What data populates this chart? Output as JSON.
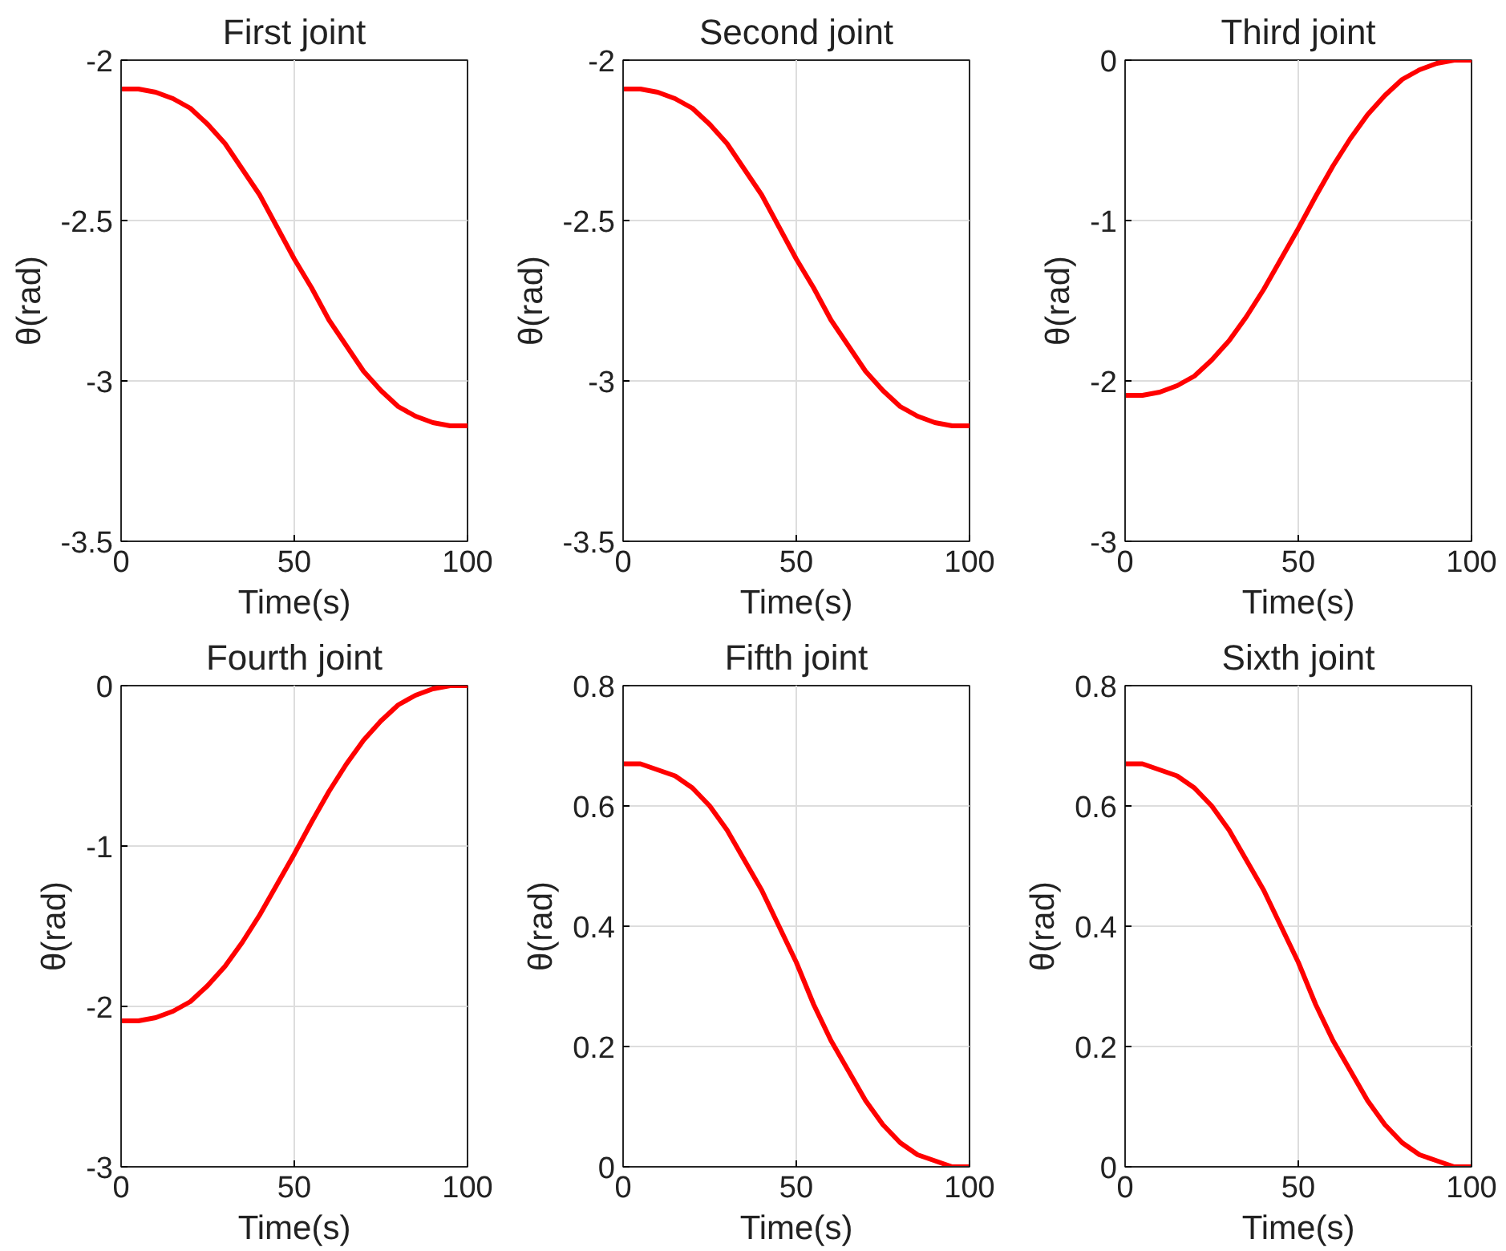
{
  "chart_data": [
    {
      "type": "line",
      "title": "First joint",
      "xlabel": "Time(s)",
      "ylabel": "θ(rad)",
      "x": [
        0,
        5,
        10,
        15,
        20,
        25,
        30,
        35,
        40,
        45,
        50,
        55,
        60,
        65,
        70,
        75,
        80,
        85,
        90,
        95,
        100
      ],
      "xlim": [
        0,
        100
      ],
      "xticks": [
        0,
        50,
        100
      ],
      "ylim": [
        -3.5,
        -2
      ],
      "yticks": [
        -3.5,
        -3,
        -2.5,
        -2
      ],
      "grid": true,
      "line_style": "solid",
      "series": [
        {
          "color": "#ff0000",
          "values": [
            -2.09,
            -2.09,
            -2.1,
            -2.12,
            -2.15,
            -2.2,
            -2.26,
            -2.34,
            -2.42,
            -2.52,
            -2.62,
            -2.71,
            -2.81,
            -2.89,
            -2.97,
            -3.03,
            -3.08,
            -3.11,
            -3.13,
            -3.14,
            -3.14
          ]
        }
      ]
    },
    {
      "type": "line",
      "title": "Second joint",
      "xlabel": "Time(s)",
      "ylabel": "θ(rad)",
      "x": [
        0,
        5,
        10,
        15,
        20,
        25,
        30,
        35,
        40,
        45,
        50,
        55,
        60,
        65,
        70,
        75,
        80,
        85,
        90,
        95,
        100
      ],
      "xlim": [
        0,
        100
      ],
      "xticks": [
        0,
        50,
        100
      ],
      "ylim": [
        -3.5,
        -2
      ],
      "yticks": [
        -3.5,
        -3,
        -2.5,
        -2
      ],
      "grid": true,
      "line_style": "solid",
      "series": [
        {
          "color": "#ff0000",
          "values": [
            -2.09,
            -2.09,
            -2.1,
            -2.12,
            -2.15,
            -2.2,
            -2.26,
            -2.34,
            -2.42,
            -2.52,
            -2.62,
            -2.71,
            -2.81,
            -2.89,
            -2.97,
            -3.03,
            -3.08,
            -3.11,
            -3.13,
            -3.14,
            -3.14
          ]
        }
      ]
    },
    {
      "type": "line",
      "title": "Third joint",
      "xlabel": "Time(s)",
      "ylabel": "θ(rad)",
      "x": [
        0,
        5,
        10,
        15,
        20,
        25,
        30,
        35,
        40,
        45,
        50,
        55,
        60,
        65,
        70,
        75,
        80,
        85,
        90,
        95,
        100
      ],
      "xlim": [
        0,
        100
      ],
      "xticks": [
        0,
        50,
        100
      ],
      "ylim": [
        -3,
        0
      ],
      "yticks": [
        -3,
        -2,
        -1,
        0
      ],
      "grid": true,
      "line_style": "solid",
      "series": [
        {
          "color": "#ff0000",
          "values": [
            -2.09,
            -2.09,
            -2.07,
            -2.03,
            -1.97,
            -1.87,
            -1.75,
            -1.6,
            -1.43,
            -1.24,
            -1.05,
            -0.85,
            -0.66,
            -0.49,
            -0.34,
            -0.22,
            -0.12,
            -0.06,
            -0.02,
            0,
            0
          ]
        }
      ]
    },
    {
      "type": "line",
      "title": "Fourth joint",
      "xlabel": "Time(s)",
      "ylabel": "θ(rad)",
      "x": [
        0,
        5,
        10,
        15,
        20,
        25,
        30,
        35,
        40,
        45,
        50,
        55,
        60,
        65,
        70,
        75,
        80,
        85,
        90,
        95,
        100
      ],
      "xlim": [
        0,
        100
      ],
      "xticks": [
        0,
        50,
        100
      ],
      "ylim": [
        -3,
        0
      ],
      "yticks": [
        -3,
        -2,
        -1,
        0
      ],
      "grid": true,
      "line_style": "solid",
      "series": [
        {
          "color": "#ff0000",
          "values": [
            -2.09,
            -2.09,
            -2.07,
            -2.03,
            -1.97,
            -1.87,
            -1.75,
            -1.6,
            -1.43,
            -1.24,
            -1.05,
            -0.85,
            -0.66,
            -0.49,
            -0.34,
            -0.22,
            -0.12,
            -0.06,
            -0.02,
            0,
            0
          ]
        }
      ]
    },
    {
      "type": "line",
      "title": "Fifth joint",
      "xlabel": "Time(s)",
      "ylabel": "θ(rad)",
      "x": [
        0,
        5,
        10,
        15,
        20,
        25,
        30,
        35,
        40,
        45,
        50,
        55,
        60,
        65,
        70,
        75,
        80,
        85,
        90,
        95,
        100
      ],
      "xlim": [
        0,
        100
      ],
      "xticks": [
        0,
        50,
        100
      ],
      "ylim": [
        0,
        0.8
      ],
      "yticks": [
        0,
        0.2,
        0.4,
        0.6,
        0.8
      ],
      "grid": true,
      "line_style": "solid",
      "series": [
        {
          "color": "#ff0000",
          "values": [
            0.67,
            0.67,
            0.66,
            0.65,
            0.63,
            0.6,
            0.56,
            0.51,
            0.46,
            0.4,
            0.34,
            0.27,
            0.21,
            0.16,
            0.11,
            0.07,
            0.04,
            0.02,
            0.01,
            0,
            0
          ]
        }
      ]
    },
    {
      "type": "line",
      "title": "Sixth joint",
      "xlabel": "Time(s)",
      "ylabel": "θ(rad)",
      "x": [
        0,
        5,
        10,
        15,
        20,
        25,
        30,
        35,
        40,
        45,
        50,
        55,
        60,
        65,
        70,
        75,
        80,
        85,
        90,
        95,
        100
      ],
      "xlim": [
        0,
        100
      ],
      "xticks": [
        0,
        50,
        100
      ],
      "ylim": [
        0,
        0.8
      ],
      "yticks": [
        0,
        0.2,
        0.4,
        0.6,
        0.8
      ],
      "grid": true,
      "line_style": "solid",
      "series": [
        {
          "color": "#ff0000",
          "values": [
            0.67,
            0.67,
            0.66,
            0.65,
            0.63,
            0.6,
            0.56,
            0.51,
            0.46,
            0.4,
            0.34,
            0.27,
            0.21,
            0.16,
            0.11,
            0.07,
            0.04,
            0.02,
            0.01,
            0,
            0
          ]
        }
      ]
    }
  ]
}
